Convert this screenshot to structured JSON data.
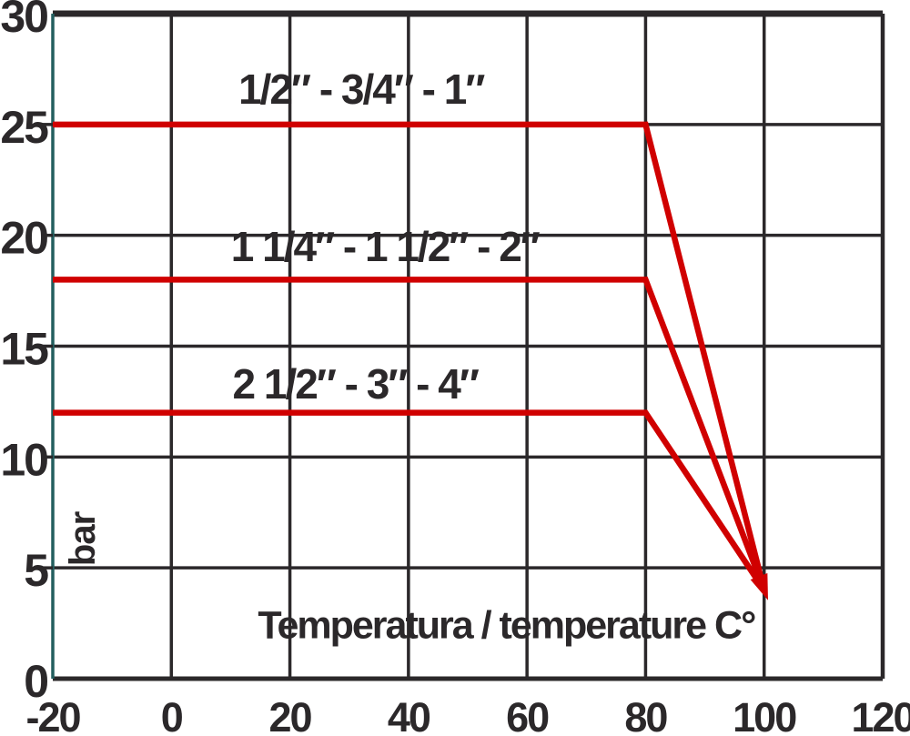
{
  "chart_data": {
    "type": "line",
    "title": "",
    "xlabel": "Temperatura / temperature C°",
    "ylabel": "bar",
    "xlim": [
      -20,
      120
    ],
    "ylim": [
      0,
      30
    ],
    "x_ticks": [
      -20,
      0,
      20,
      40,
      60,
      80,
      100,
      120
    ],
    "y_ticks": [
      0,
      5,
      10,
      15,
      20,
      25,
      30
    ],
    "grid": true,
    "legend_position": "inline-labels-above-lines",
    "series": [
      {
        "name": "1/2″ - 3/4″ - 1″",
        "points": [
          [
            -20,
            25
          ],
          [
            80,
            25
          ],
          [
            100,
            4
          ]
        ],
        "label_at": [
          32,
          26.6
        ]
      },
      {
        "name": "1 1/4″ - 1 1/2″ - 2″",
        "points": [
          [
            -20,
            18
          ],
          [
            80,
            18
          ],
          [
            100,
            4
          ]
        ],
        "label_at": [
          36,
          19.5
        ]
      },
      {
        "name": "2 1/2″ - 3″ - 4″",
        "points": [
          [
            -20,
            12
          ],
          [
            80,
            12
          ],
          [
            100,
            4
          ]
        ],
        "label_at": [
          31,
          13.3
        ]
      }
    ],
    "arrow": {
      "at": [
        100,
        4
      ]
    },
    "xlabel_at": [
      56.5,
      2.4
    ],
    "ylabel_at": [
      -14.9,
      6.3
    ],
    "colors": {
      "line": "#d00000",
      "grid": "#2b282a",
      "text": "#2b282a",
      "y_axis": "#235f5f",
      "background": "#ffffff"
    }
  }
}
